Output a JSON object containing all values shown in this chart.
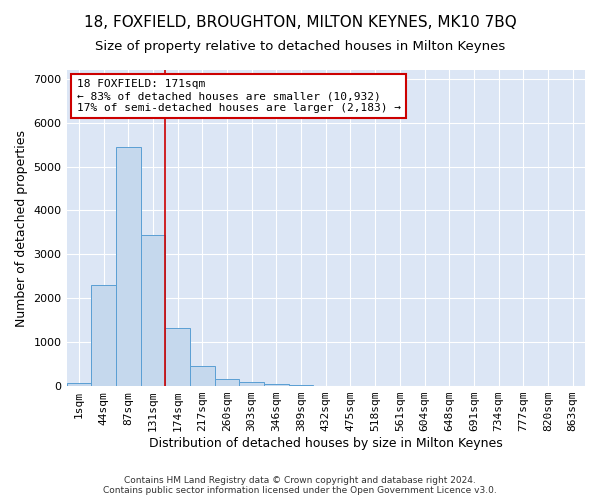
{
  "title": "18, FOXFIELD, BROUGHTON, MILTON KEYNES, MK10 7BQ",
  "subtitle": "Size of property relative to detached houses in Milton Keynes",
  "xlabel": "Distribution of detached houses by size in Milton Keynes",
  "ylabel": "Number of detached properties",
  "footer_line1": "Contains HM Land Registry data © Crown copyright and database right 2024.",
  "footer_line2": "Contains public sector information licensed under the Open Government Licence v3.0.",
  "bar_labels": [
    "1sqm",
    "44sqm",
    "87sqm",
    "131sqm",
    "174sqm",
    "217sqm",
    "260sqm",
    "303sqm",
    "346sqm",
    "389sqm",
    "432sqm",
    "475sqm",
    "518sqm",
    "561sqm",
    "604sqm",
    "648sqm",
    "691sqm",
    "734sqm",
    "777sqm",
    "820sqm",
    "863sqm"
  ],
  "bar_values": [
    75,
    2300,
    5450,
    3450,
    1320,
    460,
    160,
    85,
    55,
    35,
    0,
    0,
    0,
    0,
    0,
    0,
    0,
    0,
    0,
    0,
    0
  ],
  "bar_color": "#c5d8ed",
  "bar_edgecolor": "#5a9fd4",
  "vline_x": 3.5,
  "vline_color": "#cc0000",
  "annotation_text": "18 FOXFIELD: 171sqm\n← 83% of detached houses are smaller (10,932)\n17% of semi-detached houses are larger (2,183) →",
  "annotation_box_color": "#ffffff",
  "annotation_box_edgecolor": "#cc0000",
  "ylim": [
    0,
    7200
  ],
  "yticks": [
    0,
    1000,
    2000,
    3000,
    4000,
    5000,
    6000,
    7000
  ],
  "background_color": "#dce6f5",
  "plot_bg_color": "#dce6f5",
  "grid_color": "#ffffff",
  "title_fontsize": 11,
  "subtitle_fontsize": 9.5,
  "xlabel_fontsize": 9,
  "ylabel_fontsize": 9,
  "tick_fontsize": 8
}
